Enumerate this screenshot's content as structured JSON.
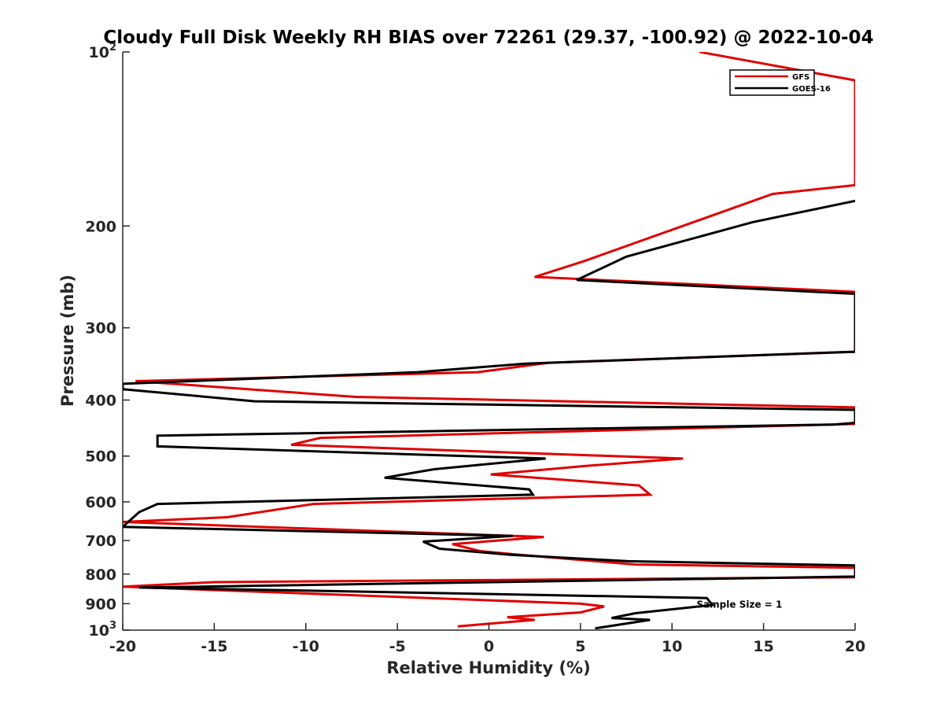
{
  "chart_data": {
    "type": "line",
    "title": "Cloudy Full Disk Weekly RH BIAS over 72261 (29.37, -100.92) @ 2022-10-04",
    "xlabel": "Relative Humidity (%)",
    "ylabel": "Pressure (mb)",
    "xlim": [
      -20,
      20
    ],
    "ylim": [
      100,
      1000
    ],
    "yscale": "log",
    "yreversed": true,
    "grid": false,
    "legend_position": "top-right",
    "x_ticks": [
      "-20",
      "-15",
      "-10",
      "-5",
      "0",
      "5",
      "10",
      "15",
      "20"
    ],
    "x_tick_values": [
      -20,
      -15,
      -10,
      -5,
      0,
      5,
      10,
      15,
      20
    ],
    "y_ticks": [
      {
        "value": 100,
        "base": "10",
        "exp": "2"
      },
      {
        "value": 200,
        "label": "200"
      },
      {
        "value": 300,
        "label": "300"
      },
      {
        "value": 400,
        "label": "400"
      },
      {
        "value": 500,
        "label": "500"
      },
      {
        "value": 600,
        "label": "600"
      },
      {
        "value": 700,
        "label": "700"
      },
      {
        "value": 800,
        "label": "800"
      },
      {
        "value": 900,
        "label": "900"
      },
      {
        "value": 1000,
        "base": "10",
        "exp": "3"
      }
    ],
    "annotation": "Sample Size = 1",
    "annotation_position": [
      12.5,
      900
    ],
    "series": [
      {
        "name": "GFS",
        "color": "#e00000",
        "points": [
          [
            -1.7,
            985
          ],
          [
            2.5,
            960
          ],
          [
            1.0,
            950
          ],
          [
            5.0,
            932
          ],
          [
            6.3,
            910
          ],
          [
            5.0,
            900
          ],
          [
            -20.0,
            841
          ],
          [
            -15.0,
            826
          ],
          [
            20.0,
            810
          ],
          [
            20.0,
            780
          ],
          [
            8.0,
            770
          ],
          [
            1.5,
            740
          ],
          [
            -0.5,
            730
          ],
          [
            -2.0,
            710
          ],
          [
            3.0,
            690
          ],
          [
            -20.0,
            650
          ],
          [
            -14.3,
            638
          ],
          [
            -9.6,
            605
          ],
          [
            8.8,
            583
          ],
          [
            8.2,
            562
          ],
          [
            0.1,
            538
          ],
          [
            5.3,
            520
          ],
          [
            10.6,
            505
          ],
          [
            -10.8,
            478
          ],
          [
            -9.2,
            465
          ],
          [
            20.0,
            440
          ],
          [
            20.0,
            412
          ],
          [
            -7.3,
            395
          ],
          [
            -19.3,
            371
          ],
          [
            -0.6,
            358
          ],
          [
            3.2,
            345
          ],
          [
            20.0,
            330
          ],
          [
            20.0,
            260
          ],
          [
            2.5,
            245
          ],
          [
            5.2,
            230
          ],
          [
            15.5,
            176
          ],
          [
            20.0,
            170
          ],
          [
            20.0,
            112
          ],
          [
            11.5,
            100
          ]
        ]
      },
      {
        "name": "GOES-16",
        "color": "#000000",
        "points": [
          [
            5.8,
            993
          ],
          [
            8.8,
            960
          ],
          [
            6.7,
            953
          ],
          [
            8.0,
            935
          ],
          [
            12.2,
            905
          ],
          [
            11.9,
            880
          ],
          [
            -19.1,
            844
          ],
          [
            20.0,
            808
          ],
          [
            20.0,
            773
          ],
          [
            7.6,
            760
          ],
          [
            1.2,
            741
          ],
          [
            -2.7,
            723
          ],
          [
            -3.6,
            703
          ],
          [
            1.3,
            687
          ],
          [
            -20.0,
            663
          ],
          [
            -19.1,
            625
          ],
          [
            -18.1,
            605
          ],
          [
            2.4,
            583
          ],
          [
            2.2,
            571
          ],
          [
            -5.7,
            545
          ],
          [
            -3.0,
            527
          ],
          [
            3.1,
            505
          ],
          [
            -18.1,
            481
          ],
          [
            -18.1,
            461
          ],
          [
            18.8,
            441
          ],
          [
            20.0,
            438
          ],
          [
            20.0,
            416
          ],
          [
            -12.8,
            402
          ],
          [
            -20.0,
            383
          ],
          [
            -20.0,
            375
          ],
          [
            -3.9,
            358
          ],
          [
            2.0,
            346
          ],
          [
            20.0,
            330
          ],
          [
            20.0,
            262
          ],
          [
            4.8,
            248
          ],
          [
            7.5,
            226
          ],
          [
            14.4,
            197
          ],
          [
            20.0,
            181
          ]
        ]
      }
    ]
  }
}
